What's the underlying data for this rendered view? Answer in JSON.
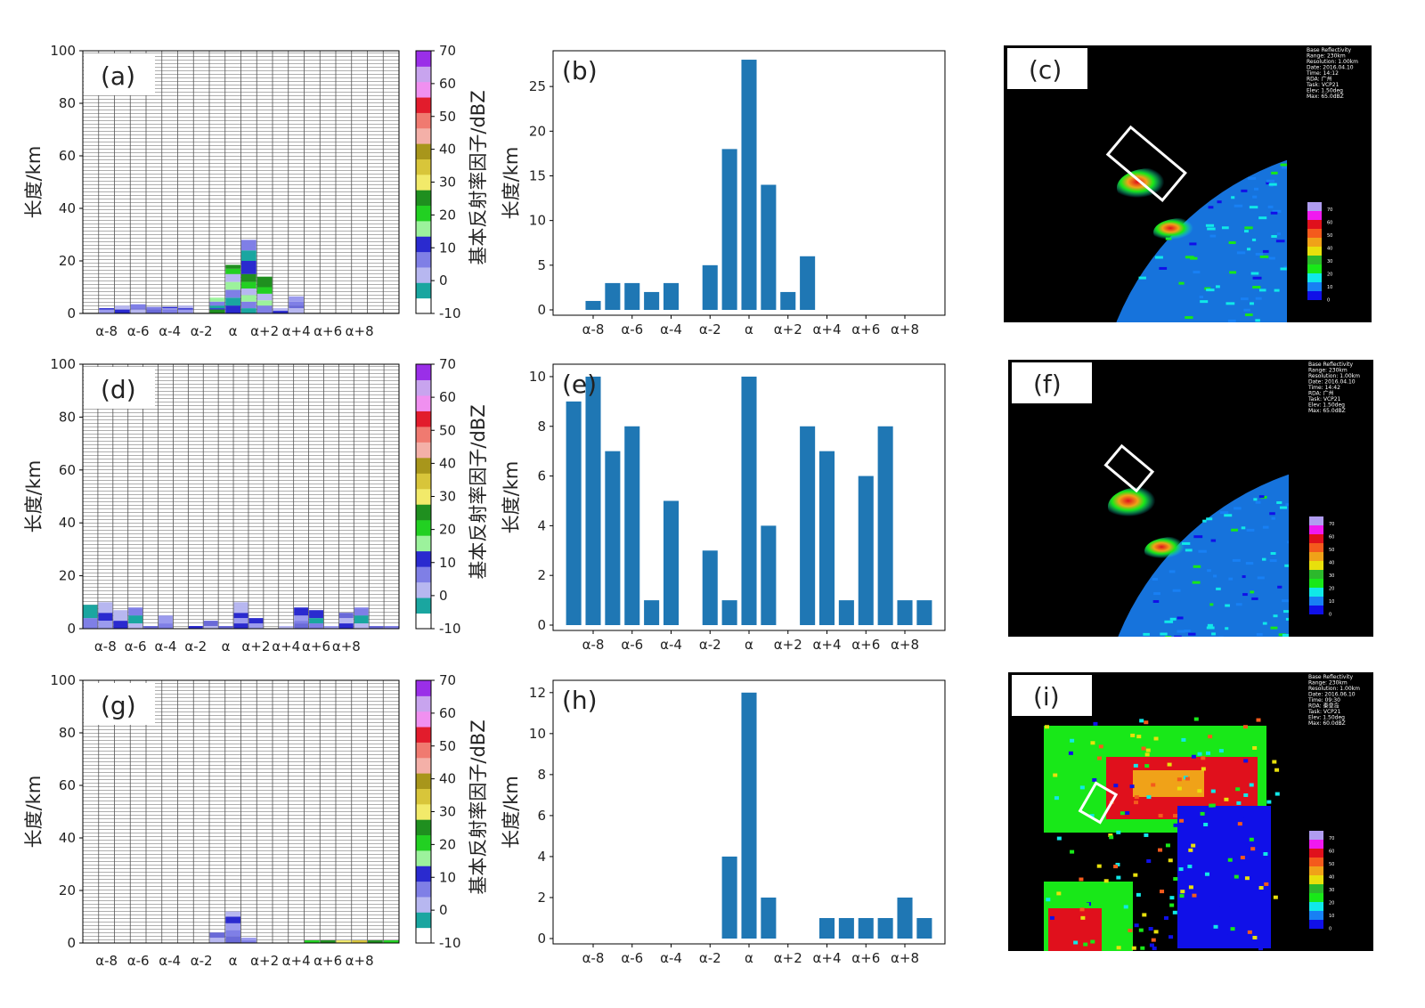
{
  "colorbar": {
    "label": "基本反射率因子/dBZ",
    "ticks": [
      "70",
      "60",
      "50",
      "40",
      "30",
      "20",
      "10",
      "0",
      "-10"
    ],
    "colors": [
      "#ffffff",
      "#1aa6a0",
      "#b7b7f0",
      "#7f7fe6",
      "#2a2acf",
      "#9cf29c",
      "#22d022",
      "#1f8f1f",
      "#f2ea6a",
      "#d8c53a",
      "#a8961b",
      "#f4b0a8",
      "#f07a70",
      "#e21c2c",
      "#f090f0",
      "#c8a4ee",
      "#9a2fe8"
    ]
  },
  "radar": {
    "title": "Base Reflectivity",
    "legend_ticks": [
      "70",
      "60",
      "50",
      "40",
      "30",
      "20",
      "10",
      "0"
    ],
    "legend_colors": [
      "#b09cf0",
      "#f019f0",
      "#e0101c",
      "#f45a1c",
      "#f0a218",
      "#e8e00c",
      "#2cb82c",
      "#18e818",
      "#10e8e8",
      "#1880f4",
      "#1010e8"
    ],
    "info_c": [
      "Base Reflectivity",
      "Range: 230km",
      "Resolution: 1.00km",
      "Date: 2016.04.10",
      "Time: 14:12",
      "RDA: 广州",
      "Task: VCP21",
      "Elev: 1.50deg",
      "Max: 65.0dBZ"
    ],
    "info_f": [
      "Base Reflectivity",
      "Range: 230km",
      "Resolution: 1.00km",
      "Date: 2016.04.10",
      "Time: 14:42",
      "RDA: 广州",
      "Task: VCP21",
      "Elev: 1.50deg",
      "Max: 65.0dBZ"
    ],
    "info_i": [
      "Base Reflectivity",
      "Range: 230km",
      "Resolution: 1.00km",
      "Date: 2016.06.10",
      "Time: 09:30",
      "RDA: 秦皇岛",
      "Task: VCP21",
      "Elev: 1.50deg",
      "Max: 60.0dBZ"
    ]
  },
  "chart_data": [
    {
      "panel": "(a)",
      "type": "heatmap",
      "ylabel": "长度/km",
      "ylim": [
        0,
        100
      ],
      "yticks": [
        "0",
        "20",
        "40",
        "60",
        "80",
        "100"
      ],
      "xticks": [
        "α-8",
        "α-6",
        "α-4",
        "α-2",
        "α",
        "α+2",
        "α+4",
        "α+6",
        "α+8"
      ],
      "columns": [
        [],
        [
          1.5,
          2
        ],
        [
          1.5,
          3
        ],
        [
          1.5,
          2,
          3.5
        ],
        [
          1.5,
          2.5
        ],
        [
          1.5,
          2,
          2.5
        ],
        [
          1.5,
          2,
          3
        ],
        [],
        [
          1.5,
          2,
          3,
          4.5,
          6
        ],
        [
          3,
          6,
          9,
          12,
          15,
          17,
          18.5
        ],
        [
          2,
          4.5,
          7,
          9.5,
          12,
          15,
          20,
          24,
          28
        ],
        [
          3,
          5,
          7.5,
          10,
          14
        ],
        [
          1,
          2
        ],
        [
          2,
          3,
          4.5,
          6.5
        ],
        [],
        [],
        [],
        [],
        [],
        []
      ]
    },
    {
      "panel": "(b)",
      "type": "bar",
      "ylabel": "长度/km",
      "ylim": [
        0,
        29
      ],
      "yticks": [
        "0",
        "5",
        "10",
        "15",
        "20",
        "25"
      ],
      "xticks": [
        "α-8",
        "α-6",
        "α-4",
        "α-2",
        "α",
        "α+2",
        "α+4",
        "α+6",
        "α+8"
      ],
      "values": [
        0,
        1,
        3,
        3,
        2,
        3,
        0,
        5,
        18,
        28,
        14,
        2,
        6,
        0,
        0,
        0,
        0,
        0,
        0
      ]
    },
    {
      "panel": "(d)",
      "type": "heatmap",
      "ylabel": "长度/km",
      "ylim": [
        0,
        100
      ],
      "yticks": [
        "0",
        "20",
        "40",
        "60",
        "80",
        "100"
      ],
      "xticks": [
        "α-8",
        "α-6",
        "α-4",
        "α-2",
        "α",
        "α+2",
        "α+4",
        "α+6",
        "α+8"
      ],
      "columns": [
        [
          4,
          9
        ],
        [
          3,
          6,
          10
        ],
        [
          3,
          7
        ],
        [
          2,
          5,
          8
        ],
        [
          1
        ],
        [
          2,
          5
        ],
        [],
        [
          1
        ],
        [
          1,
          3
        ],
        [
          1
        ],
        [
          2,
          4,
          6,
          10
        ],
        [
          2,
          4
        ],
        [],
        [
          1
        ],
        [
          2,
          3,
          5,
          8
        ],
        [
          2,
          4,
          7
        ],
        [
          1
        ],
        [
          2,
          4,
          6
        ],
        [
          2,
          5,
          8
        ],
        [
          1
        ],
        [
          1
        ]
      ]
    },
    {
      "panel": "(e)",
      "type": "bar",
      "ylabel": "长度/km",
      "ylim": [
        0,
        10.5
      ],
      "yticks": [
        "0",
        "2",
        "4",
        "6",
        "8",
        "10"
      ],
      "xticks": [
        "α-8",
        "α-6",
        "α-4",
        "α-2",
        "α",
        "α+2",
        "α+4",
        "α+6",
        "α+8"
      ],
      "values": [
        9,
        10,
        7,
        8,
        1,
        5,
        0,
        3,
        1,
        10,
        4,
        0,
        8,
        7,
        1,
        6,
        8,
        1,
        1
      ]
    },
    {
      "panel": "(g)",
      "type": "heatmap",
      "ylabel": "长度/km",
      "ylim": [
        0,
        100
      ],
      "yticks": [
        "0",
        "20",
        "40",
        "60",
        "80",
        "100"
      ],
      "xticks": [
        "α-8",
        "α-6",
        "α-4",
        "α-2",
        "α",
        "α+2",
        "α+4",
        "α+6",
        "α+8"
      ],
      "columns": [
        [],
        [],
        [],
        [],
        [],
        [],
        [],
        [],
        [
          2,
          4
        ],
        [
          2.5,
          5,
          7.5,
          10,
          12
        ],
        [
          1,
          2
        ],
        [],
        [],
        [],
        [
          1
        ],
        [
          1
        ],
        [
          1
        ],
        [
          1
        ],
        [
          1
        ],
        [
          1
        ]
      ]
    },
    {
      "panel": "(h)",
      "type": "bar",
      "ylabel": "长度/km",
      "ylim": [
        0,
        12.6
      ],
      "yticks": [
        "0",
        "2",
        "4",
        "6",
        "8",
        "10",
        "12"
      ],
      "xticks": [
        "α-8",
        "α-6",
        "α-4",
        "α-2",
        "α",
        "α+2",
        "α+4",
        "α+6",
        "α+8"
      ],
      "values": [
        0,
        0,
        0,
        0,
        0,
        0,
        0,
        0,
        4,
        12,
        2,
        0,
        0,
        1,
        1,
        1,
        1,
        2,
        1
      ]
    }
  ],
  "radar_panels": [
    "(c)",
    "(f)",
    "(i)"
  ]
}
